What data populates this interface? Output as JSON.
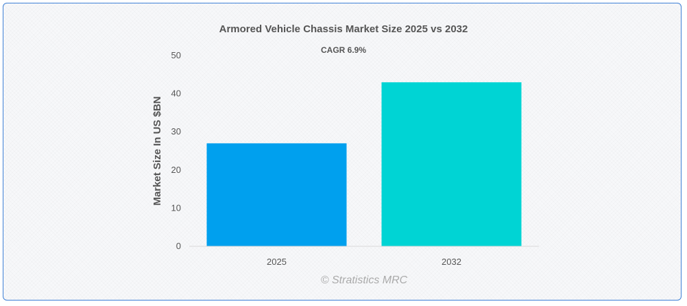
{
  "chart_data": {
    "type": "bar",
    "title": "Armored Vehicle Chassis Market Size 2025 vs 2032",
    "subtitle": "CAGR 6.9%",
    "ylabel": "Market Size In US $BN",
    "xlabel": "",
    "categories": [
      "2025",
      "2032"
    ],
    "values": [
      27,
      43
    ],
    "colors": [
      "#00a0ee",
      "#00d4d4"
    ],
    "ylim": [
      0,
      50
    ],
    "yticks": [
      "0",
      "10",
      "20",
      "30",
      "40",
      "50"
    ],
    "grid": false,
    "legend": "none"
  },
  "watermark": "© Stratistics MRC"
}
